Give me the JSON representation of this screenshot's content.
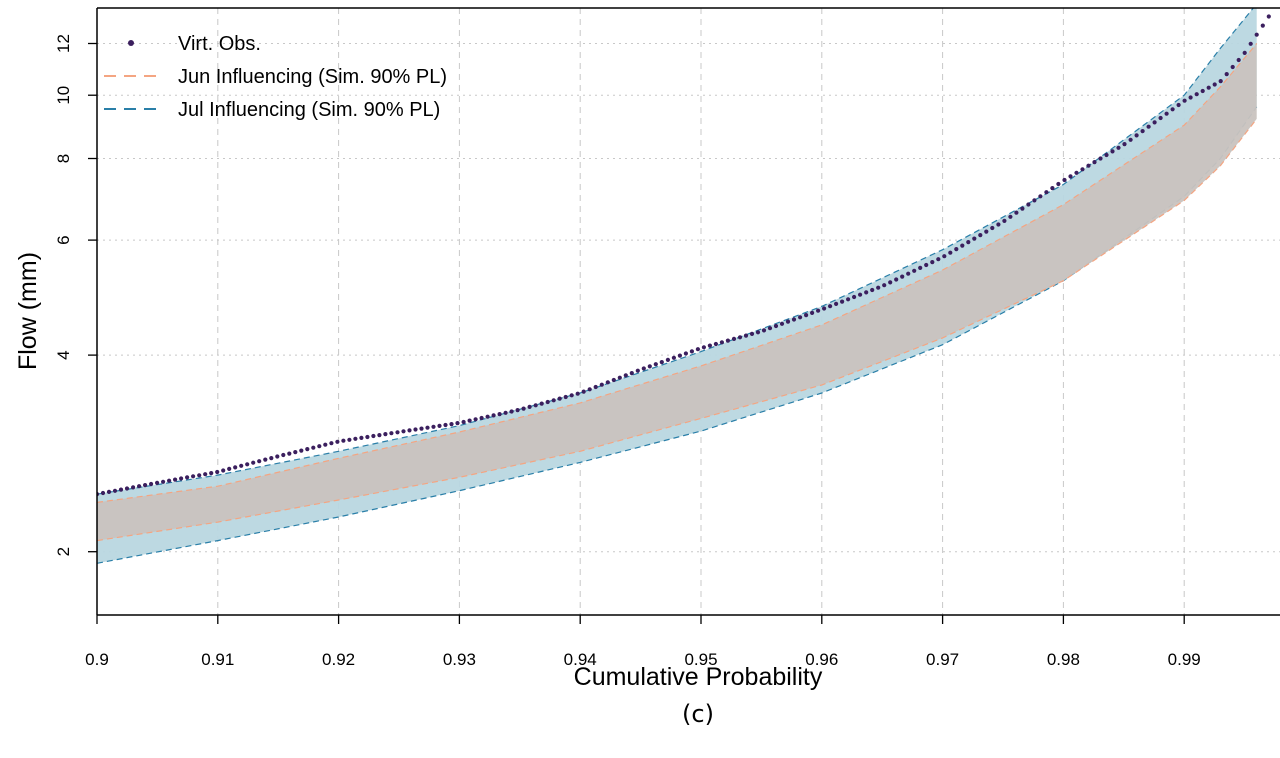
{
  "chart_data": {
    "type": "line",
    "title": "",
    "panel_label": "(c)",
    "xlabel": "Cumulative Probability",
    "ylabel": "Flow (mm)",
    "xlim": [
      0.9,
      0.998
    ],
    "ylim": [
      1.6,
      13.6
    ],
    "y_scale": "log",
    "grid": true,
    "legend_position": "top-left",
    "x_ticks": [
      0.9,
      0.91,
      0.92,
      0.93,
      0.94,
      0.95,
      0.96,
      0.97,
      0.98,
      0.99
    ],
    "x_tick_labels": [
      "0.9",
      "0.91",
      "0.92",
      "0.93",
      "0.94",
      "0.95",
      "0.96",
      "0.97",
      "0.98",
      "0.99"
    ],
    "y_ticks": [
      2,
      4,
      6,
      8,
      10,
      12
    ],
    "y_tick_labels": [
      "2",
      "4",
      "6",
      "8",
      "10",
      "12"
    ],
    "legend": [
      {
        "label": "Virt. Obs.",
        "style": "points",
        "color": "#3b1f5e"
      },
      {
        "label": "Jun Influencing (Sim. 90% PL)",
        "style": "dashed",
        "color": "#f4a582"
      },
      {
        "label": "Jul Influencing (Sim. 90% PL)",
        "style": "dashed",
        "color": "#2a7fa8"
      }
    ],
    "series": [
      {
        "name": "Virt. Obs.",
        "kind": "points",
        "color": "#3b1f5e",
        "x": [
          0.9,
          0.905,
          0.91,
          0.915,
          0.92,
          0.925,
          0.93,
          0.935,
          0.94,
          0.945,
          0.95,
          0.955,
          0.96,
          0.965,
          0.97,
          0.975,
          0.98,
          0.985,
          0.99,
          0.993,
          0.995,
          0.997
        ],
        "y": [
          2.45,
          2.55,
          2.65,
          2.8,
          2.95,
          3.05,
          3.15,
          3.3,
          3.5,
          3.8,
          4.1,
          4.35,
          4.7,
          5.1,
          5.65,
          6.4,
          7.4,
          8.4,
          9.8,
          10.5,
          11.6,
          13.2
        ]
      },
      {
        "name": "Jun Influencing (Sim. 90% PL)",
        "kind": "band",
        "fill": "#c9c3bf",
        "line_color": "#f4a582",
        "x": [
          0.9,
          0.91,
          0.92,
          0.93,
          0.94,
          0.95,
          0.96,
          0.97,
          0.98,
          0.99,
          0.993,
          0.996
        ],
        "lower": [
          2.08,
          2.22,
          2.4,
          2.6,
          2.85,
          3.2,
          3.6,
          4.25,
          5.2,
          6.9,
          7.8,
          9.2
        ],
        "upper": [
          2.38,
          2.52,
          2.78,
          3.05,
          3.38,
          3.85,
          4.45,
          5.4,
          6.8,
          9.0,
          10.3,
          12.0
        ]
      },
      {
        "name": "Jul Influencing (Sim. 90% PL)",
        "kind": "band",
        "fill": "#b9d7e0",
        "line_color": "#2a7fa8",
        "x": [
          0.9,
          0.91,
          0.92,
          0.93,
          0.94,
          0.95,
          0.96,
          0.97,
          0.98,
          0.99,
          0.993,
          0.996
        ],
        "lower": [
          1.92,
          2.08,
          2.26,
          2.48,
          2.74,
          3.06,
          3.5,
          4.15,
          5.2,
          7.0,
          8.0,
          9.6
        ],
        "upper": [
          2.45,
          2.62,
          2.85,
          3.12,
          3.5,
          4.05,
          4.75,
          5.8,
          7.3,
          10.0,
          11.8,
          13.8
        ]
      }
    ]
  }
}
